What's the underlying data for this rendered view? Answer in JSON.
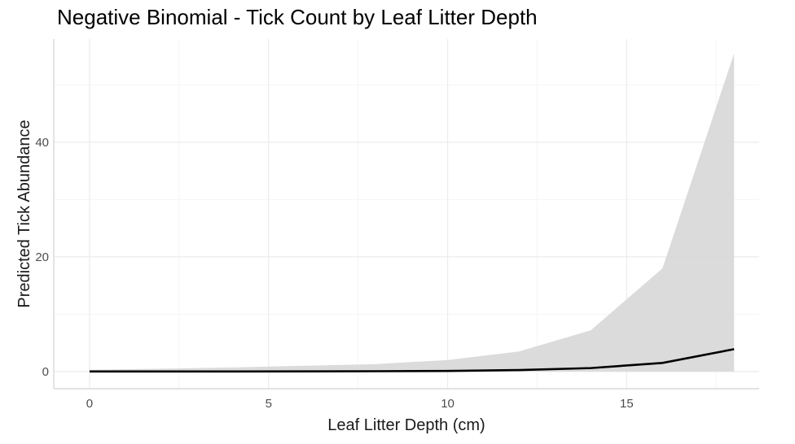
{
  "chart_data": {
    "type": "line",
    "title": "Negative Binomial - Tick Count by Leaf Litter Depth",
    "xlabel": "Leaf Litter Depth (cm)",
    "ylabel": "Predicted Tick Abundance",
    "xlim": [
      -1,
      18.7
    ],
    "ylim": [
      -3,
      58
    ],
    "x_ticks": [
      0,
      5,
      10,
      15
    ],
    "x_tick_labels": [
      "0",
      "5",
      "10",
      "15"
    ],
    "y_ticks": [
      0,
      20,
      40
    ],
    "y_tick_labels": [
      "0",
      "20",
      "40"
    ],
    "grid": true,
    "legend": "none",
    "series": [
      {
        "x": [
          0,
          2,
          4,
          6,
          8,
          10,
          12,
          14,
          16,
          18
        ],
        "values": [
          0.0,
          0.0,
          0.01,
          0.02,
          0.05,
          0.1,
          0.25,
          0.6,
          1.5,
          3.9
        ],
        "lower": [
          0,
          0,
          0,
          0,
          0,
          0,
          0,
          0,
          0,
          0
        ],
        "upper": [
          0.3,
          0.5,
          0.7,
          1.0,
          1.3,
          2.0,
          3.5,
          7.2,
          18.0,
          55.5
        ]
      }
    ],
    "colors": {
      "line": "#000000",
      "ribbon": "#d9d9d9",
      "grid_major": "#ebebeb",
      "grid_minor": "#f4f4f4",
      "axis_line": "#d9d9d9"
    }
  }
}
